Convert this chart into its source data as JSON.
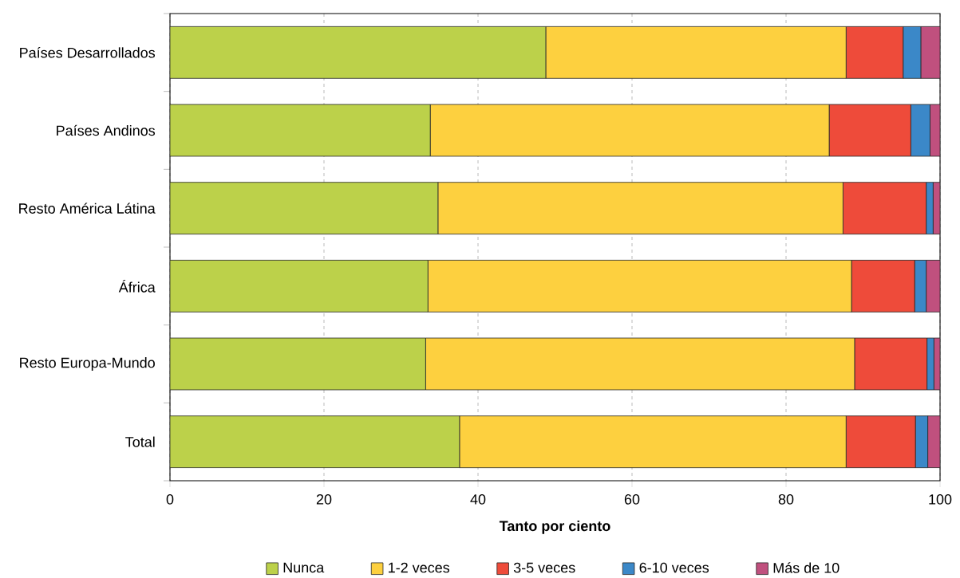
{
  "chart_data": {
    "type": "bar",
    "orientation": "horizontal",
    "stacked": true,
    "xlabel": "Tanto por ciento",
    "categories": [
      "Países Desarrollados",
      "Países Andinos",
      "Resto América Látina",
      "África",
      "Resto Europa-Mundo",
      "Total"
    ],
    "series": [
      {
        "name": "Nunca",
        "color": "#bcd14a",
        "values": [
          48.8,
          33.8,
          34.8,
          33.5,
          33.2,
          37.6
        ]
      },
      {
        "name": "1-2 veces",
        "color": "#fdd03f",
        "values": [
          39.0,
          51.8,
          52.6,
          55.0,
          55.7,
          50.2
        ]
      },
      {
        "name": "3-5 veces",
        "color": "#ee4b3a",
        "values": [
          7.4,
          10.6,
          10.8,
          8.2,
          9.4,
          9.0
        ]
      },
      {
        "name": "6-10 veces",
        "color": "#3b88c8",
        "values": [
          2.3,
          2.5,
          0.9,
          1.5,
          0.9,
          1.6
        ]
      },
      {
        "name": "Más de 10",
        "color": "#c0507e",
        "values": [
          2.5,
          1.3,
          0.9,
          1.8,
          0.8,
          1.6
        ]
      }
    ],
    "xlim": [
      0,
      100
    ],
    "xticks": [
      0,
      20,
      40,
      60,
      80,
      100
    ],
    "grid": "x",
    "legend": "bottom"
  }
}
